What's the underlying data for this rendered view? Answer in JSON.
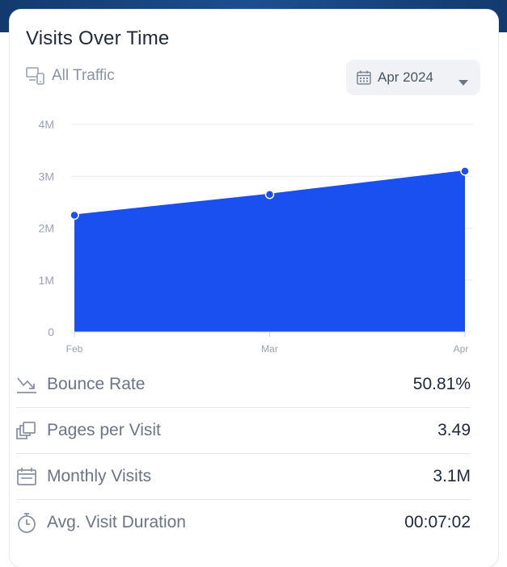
{
  "card": {
    "title": "Visits Over Time",
    "filter_label": "All Traffic",
    "date_selector": {
      "value": "Apr 2024",
      "icon": "calendar-icon"
    }
  },
  "chart_data": {
    "type": "area",
    "categories": [
      "Feb",
      "Mar",
      "Apr"
    ],
    "values": [
      2.25,
      2.65,
      3.1
    ],
    "value_unit": "M",
    "y_ticks": [
      "0",
      "1M",
      "2M",
      "3M",
      "4M"
    ],
    "ylim": [
      0,
      4
    ],
    "color": "#1a4ff0",
    "grid": true
  },
  "stats": [
    {
      "icon": "trend-down-icon",
      "label": "Bounce Rate",
      "value": "50.81%"
    },
    {
      "icon": "pages-icon",
      "label": "Pages per Visit",
      "value": "3.49"
    },
    {
      "icon": "calendar-icon",
      "label": "Monthly Visits",
      "value": "3.1M"
    },
    {
      "icon": "stopwatch-icon",
      "label": "Avg. Visit Duration",
      "value": "00:07:02"
    }
  ]
}
